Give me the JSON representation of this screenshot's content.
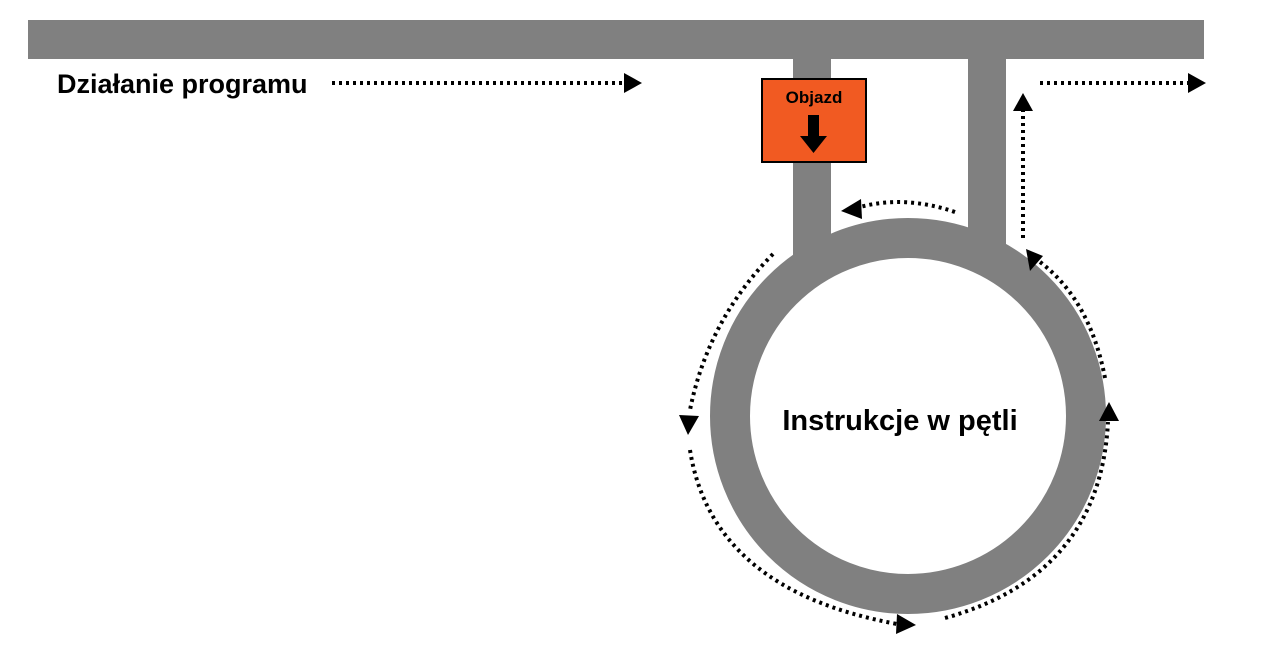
{
  "labels": {
    "program_flow": "Działanie programu",
    "loop_body": "Instrukcje w pętli",
    "detour_sign": "Objazd"
  },
  "colors": {
    "road": "#808080",
    "sign": "#f15a22",
    "arrow": "#000000",
    "background": "#ffffff"
  },
  "icons": {
    "sign_arrow": "arrow-down-icon",
    "flow_arrowhead": "arrowhead-icon"
  }
}
